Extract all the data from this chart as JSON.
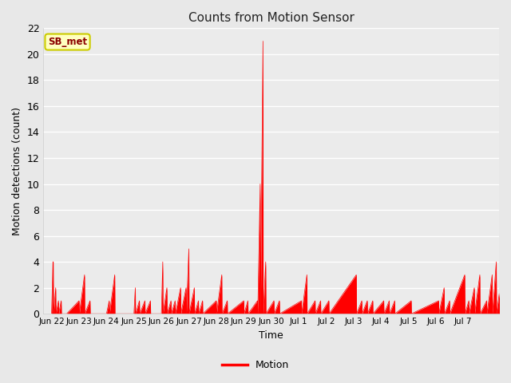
{
  "title": "Counts from Motion Sensor",
  "xlabel": "Time",
  "ylabel": "Motion detections (count)",
  "legend_label": "Motion",
  "line_color": "#FF0000",
  "fig_bg_color": "#E8E8E8",
  "plot_bg_color": "#EBEBEB",
  "grid_color": "#FFFFFF",
  "ylim": [
    0,
    22
  ],
  "yticks": [
    0,
    2,
    4,
    6,
    8,
    10,
    12,
    14,
    16,
    18,
    20,
    22
  ],
  "annotation_text": "SB_met",
  "annotation_bg": "#FFFFC0",
  "annotation_fg": "#8B0000",
  "annotation_edge": "#CCCC00",
  "x_tick_labels": [
    "Jun 22",
    "Jun 23",
    "Jun 24",
    "Jun 25",
    "Jun 26",
    "Jun 27",
    "Jun 28",
    "Jun 29",
    "Jun 30",
    "Jul 1",
    "Jul 2",
    "Jul 3",
    "Jul 4",
    "Jul 5",
    "Jul 6",
    "Jul 7"
  ],
  "data_points": [
    [
      0,
      0
    ],
    [
      0.05,
      4
    ],
    [
      0.06,
      4
    ],
    [
      0.07,
      0
    ],
    [
      0.15,
      2
    ],
    [
      0.16,
      0
    ],
    [
      0.25,
      1
    ],
    [
      0.26,
      0
    ],
    [
      0.35,
      1
    ],
    [
      0.36,
      0
    ],
    [
      0.5,
      0
    ],
    [
      0.55,
      0
    ],
    [
      1.0,
      1
    ],
    [
      1.01,
      0
    ],
    [
      1.2,
      3
    ],
    [
      1.21,
      0
    ],
    [
      1.4,
      1
    ],
    [
      1.41,
      0
    ],
    [
      2.0,
      0
    ],
    [
      2.1,
      1
    ],
    [
      2.11,
      0
    ],
    [
      2.3,
      3
    ],
    [
      2.31,
      0
    ],
    [
      3.0,
      0
    ],
    [
      3.05,
      2
    ],
    [
      3.06,
      0
    ],
    [
      3.2,
      1
    ],
    [
      3.21,
      0
    ],
    [
      3.4,
      1
    ],
    [
      3.41,
      0
    ],
    [
      3.6,
      1
    ],
    [
      3.61,
      0
    ],
    [
      4.0,
      0
    ],
    [
      4.05,
      4
    ],
    [
      4.06,
      0
    ],
    [
      4.2,
      2
    ],
    [
      4.21,
      0
    ],
    [
      4.35,
      1
    ],
    [
      4.36,
      0
    ],
    [
      4.5,
      1
    ],
    [
      4.51,
      0
    ],
    [
      4.7,
      2
    ],
    [
      4.71,
      0
    ],
    [
      4.9,
      2
    ],
    [
      4.91,
      0
    ],
    [
      5.0,
      5
    ],
    [
      5.01,
      0
    ],
    [
      5.2,
      2
    ],
    [
      5.21,
      0
    ],
    [
      5.35,
      1
    ],
    [
      5.36,
      0
    ],
    [
      5.5,
      1
    ],
    [
      5.51,
      0
    ],
    [
      6.0,
      1
    ],
    [
      6.01,
      0
    ],
    [
      6.2,
      3
    ],
    [
      6.21,
      0
    ],
    [
      6.4,
      1
    ],
    [
      6.41,
      0
    ],
    [
      7.0,
      1
    ],
    [
      7.01,
      0
    ],
    [
      7.15,
      1
    ],
    [
      7.16,
      0
    ],
    [
      7.5,
      1
    ],
    [
      7.51,
      0
    ],
    [
      7.6,
      10
    ],
    [
      7.61,
      0
    ],
    [
      7.7,
      21
    ],
    [
      7.71,
      0
    ],
    [
      7.8,
      4
    ],
    [
      7.81,
      0
    ],
    [
      8.1,
      1
    ],
    [
      8.11,
      0
    ],
    [
      8.3,
      1
    ],
    [
      8.31,
      0
    ],
    [
      9.1,
      1
    ],
    [
      9.11,
      0
    ],
    [
      9.3,
      3
    ],
    [
      9.31,
      0
    ],
    [
      9.6,
      1
    ],
    [
      9.61,
      0
    ],
    [
      9.8,
      1
    ],
    [
      9.81,
      0
    ],
    [
      10.1,
      1
    ],
    [
      10.11,
      0
    ],
    [
      11.1,
      3
    ],
    [
      11.11,
      0
    ],
    [
      11.3,
      1
    ],
    [
      11.31,
      0
    ],
    [
      11.5,
      1
    ],
    [
      11.51,
      0
    ],
    [
      11.7,
      1
    ],
    [
      11.71,
      0
    ],
    [
      12.1,
      1
    ],
    [
      12.11,
      0
    ],
    [
      12.3,
      1
    ],
    [
      12.31,
      0
    ],
    [
      12.5,
      1
    ],
    [
      12.51,
      0
    ],
    [
      13.1,
      1
    ],
    [
      13.11,
      0
    ],
    [
      14.1,
      1
    ],
    [
      14.11,
      0
    ],
    [
      14.3,
      2
    ],
    [
      14.31,
      0
    ],
    [
      14.5,
      1
    ],
    [
      14.51,
      0
    ],
    [
      15.05,
      3
    ],
    [
      15.06,
      0
    ],
    [
      15.2,
      1
    ],
    [
      15.21,
      0
    ],
    [
      15.4,
      2
    ],
    [
      15.41,
      0
    ],
    [
      15.6,
      3
    ],
    [
      15.61,
      0
    ],
    [
      15.85,
      1
    ],
    [
      15.86,
      0
    ],
    [
      16.05,
      3
    ],
    [
      16.06,
      0
    ],
    [
      16.2,
      4
    ],
    [
      16.21,
      0
    ],
    [
      16.4,
      3
    ],
    [
      16.41,
      0
    ],
    [
      16.6,
      1
    ],
    [
      16.61,
      0
    ],
    [
      16.8,
      0
    ]
  ]
}
